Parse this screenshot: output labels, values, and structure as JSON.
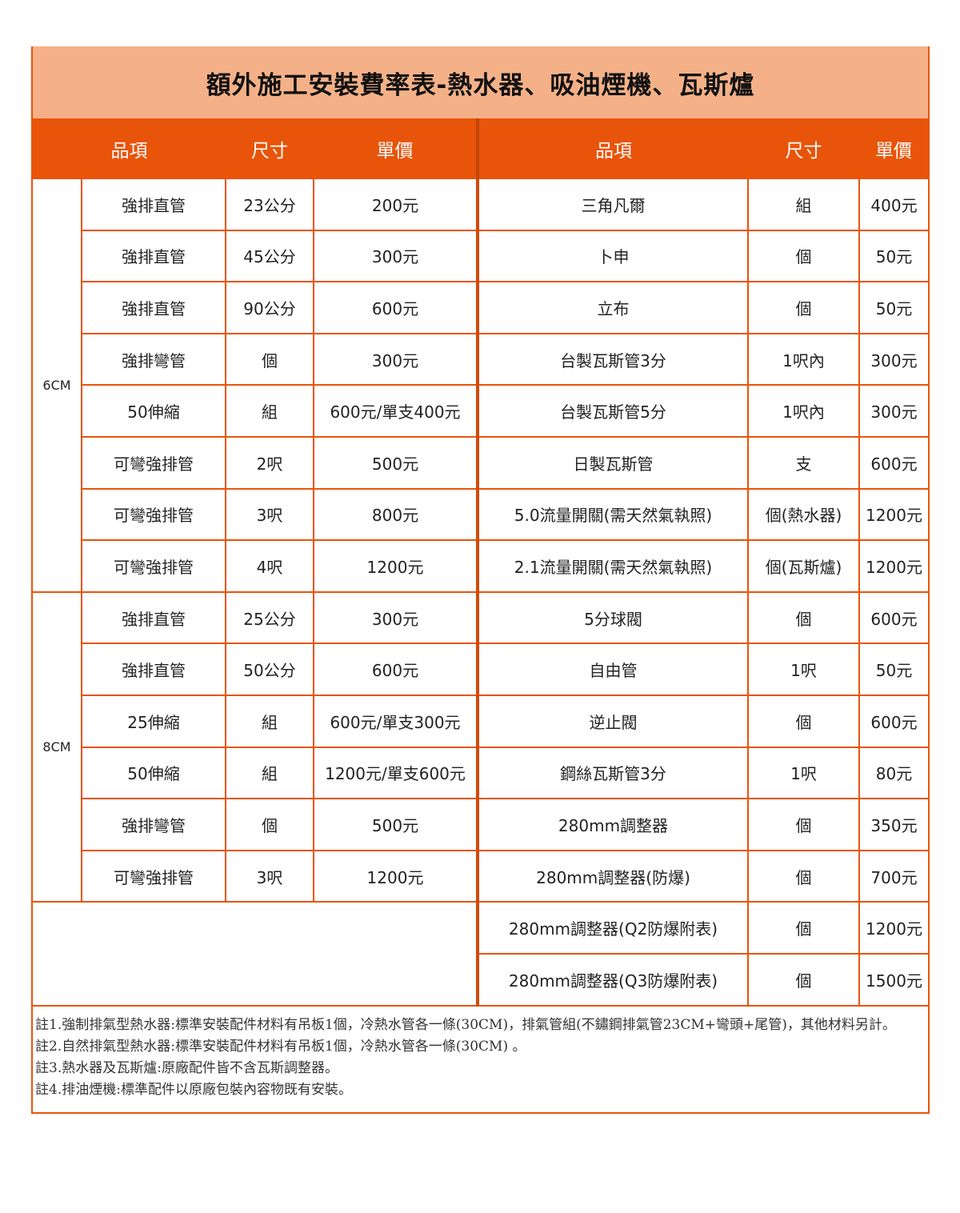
{
  "title": "額外施工安裝費率表-熱水器、吸油煙機、瓦斯爐",
  "colors": {
    "title_bg": "#f4b188",
    "header_bg": "#e8540a",
    "border": "#e8540a"
  },
  "headers": {
    "left": [
      "品項",
      "尺寸",
      "單價"
    ],
    "right": [
      "品項",
      "尺寸",
      "單價"
    ]
  },
  "left_groups": [
    {
      "label": "6CM",
      "rows": [
        [
          "強排直管",
          "23公分",
          "200元"
        ],
        [
          "強排直管",
          "45公分",
          "300元"
        ],
        [
          "強排直管",
          "90公分",
          "600元"
        ],
        [
          "強排彎管",
          "個",
          "300元"
        ],
        [
          "50伸縮",
          "組",
          "600元/單支400元"
        ],
        [
          "可彎強排管",
          "2呎",
          "500元"
        ],
        [
          "可彎強排管",
          "3呎",
          "800元"
        ],
        [
          "可彎強排管",
          "4呎",
          "1200元"
        ]
      ]
    },
    {
      "label": "8CM",
      "rows": [
        [
          "強排直管",
          "25公分",
          "300元"
        ],
        [
          "強排直管",
          "50公分",
          "600元"
        ],
        [
          "25伸縮",
          "組",
          "600元/單支300元"
        ],
        [
          "50伸縮",
          "組",
          "1200元/單支600元"
        ],
        [
          "強排彎管",
          "個",
          "500元"
        ],
        [
          "可彎強排管",
          "3呎",
          "1200元"
        ]
      ]
    }
  ],
  "right_rows": [
    [
      "三角凡爾",
      "組",
      "400元"
    ],
    [
      "卜申",
      "個",
      "50元"
    ],
    [
      "立布",
      "個",
      "50元"
    ],
    [
      "台製瓦斯管3分",
      "1呎內",
      "300元"
    ],
    [
      "台製瓦斯管5分",
      "1呎內",
      "300元"
    ],
    [
      "日製瓦斯管",
      "支",
      "600元"
    ],
    [
      "5.0流量開關(需天然氣執照)",
      "個(熱水器)",
      "1200元"
    ],
    [
      "2.1流量開關(需天然氣執照)",
      "個(瓦斯爐)",
      "1200元"
    ],
    [
      "5分球閥",
      "個",
      "600元"
    ],
    [
      "自由管",
      "1呎",
      "50元"
    ],
    [
      "逆止閥",
      "個",
      "600元"
    ],
    [
      "鋼絲瓦斯管3分",
      "1呎",
      "80元"
    ],
    [
      "280mm調整器",
      "個",
      "350元"
    ],
    [
      "280mm調整器(防爆)",
      "個",
      "700元"
    ],
    [
      "280mm調整器(Q2防爆附表)",
      "個",
      "1200元"
    ],
    [
      "280mm調整器(Q3防爆附表)",
      "個",
      "1500元"
    ]
  ],
  "notes": [
    "註1.強制排氣型熱水器:標準安裝配件材料有吊板1個，冷熱水管各一條(30CM)，排氣管組(不鏽鋼排氣管23CM+彎頭+尾管)，其他材料另計。",
    "註2.自然排氣型熱水器:標準安裝配件材料有吊板1個，冷熱水管各一條(30CM) 。",
    "註3.熱水器及瓦斯爐:原廠配件皆不含瓦斯調整器。",
    "註4.排油煙機:標準配件以原廠包裝內容物既有安裝。"
  ]
}
